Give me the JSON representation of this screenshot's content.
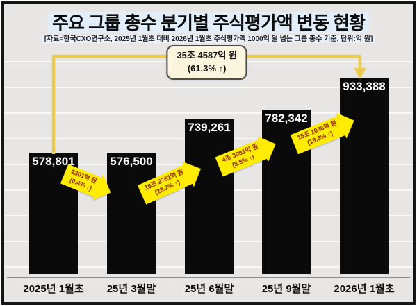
{
  "header": {
    "title": "주요 그룹 총수 분기별 주식평가액 변동 현황",
    "subtitle": "[자료=한국CXO연구소, 2025년 1월초 대비 2026년 1월초 주식평가액 1000억 원 넘는 그룹 총수 기준, 단위:억 원]"
  },
  "callout": {
    "line1": "35조 4587억 원",
    "line2": "(61.3% ↑)"
  },
  "chart_data": {
    "type": "bar",
    "title": "주요 그룹 총수 분기별 주식평가액 변동 현황",
    "unit": "억 원",
    "categories": [
      "2025년 1월초",
      "25년 3월말",
      "25년 6월말",
      "25년 9월말",
      "2026년 1월초"
    ],
    "values": [
      578801,
      576500,
      739261,
      782342,
      933388
    ],
    "value_labels": [
      "578,801",
      "576,500",
      "739,261",
      "782,342",
      "933,388"
    ],
    "ylim": [
      0,
      950000
    ],
    "grid": "horizontal-subtle",
    "legend": "none",
    "deltas": [
      {
        "label": "2301억 원",
        "pct": "(0.4% ↓)",
        "direction": "down"
      },
      {
        "label": "16조 2761억 원",
        "pct": "(28.2% ↑)",
        "direction": "up"
      },
      {
        "label": "4조 3081억 원",
        "pct": "(5.8% ↑)",
        "direction": "up"
      },
      {
        "label": "15조 1046억 원",
        "pct": "(19.3% ↑)",
        "direction": "up"
      }
    ],
    "total_change": {
      "label": "35조 4587억 원",
      "pct": "(61.3% ↑)"
    }
  },
  "colors": {
    "bar": "#0a0a0a",
    "arrow_yellow": "#ffec00",
    "arrow_text": "#8a1d10",
    "bracket_gold": "#ecca4d",
    "callout_bg": "#fcf5dd",
    "background": "#e7e6e4"
  }
}
